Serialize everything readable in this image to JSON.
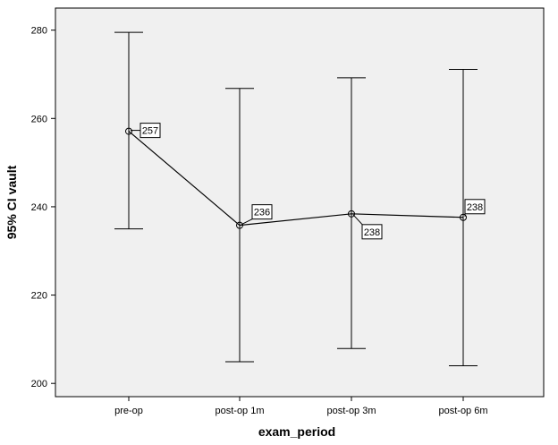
{
  "chart_data": {
    "type": "line",
    "subtype": "errorbar",
    "title": "",
    "xlabel": "exam_period",
    "ylabel": "95% CI vault",
    "categories": [
      "pre-op",
      "post-op 1m",
      "post-op 3m",
      "post-op 6m"
    ],
    "series": [
      {
        "values": [
          257.1,
          235.8,
          238.4,
          237.6
        ],
        "ci_lower": [
          235.0,
          204.9,
          207.9,
          204.0
        ],
        "ci_upper": [
          279.5,
          266.8,
          269.2,
          271.1
        ],
        "data_labels": [
          "257",
          "236",
          "238",
          "238"
        ]
      }
    ],
    "ylim": [
      197,
      285
    ],
    "yticks": [
      200,
      220,
      240,
      260,
      280
    ],
    "ytick_labels": [
      "200",
      "220",
      "240",
      "260",
      "280"
    ],
    "grid": false,
    "legend": "none",
    "colors": {
      "plot_background": "#f0f0f0",
      "figure_background": "#ffffff",
      "line": "#000000"
    }
  }
}
